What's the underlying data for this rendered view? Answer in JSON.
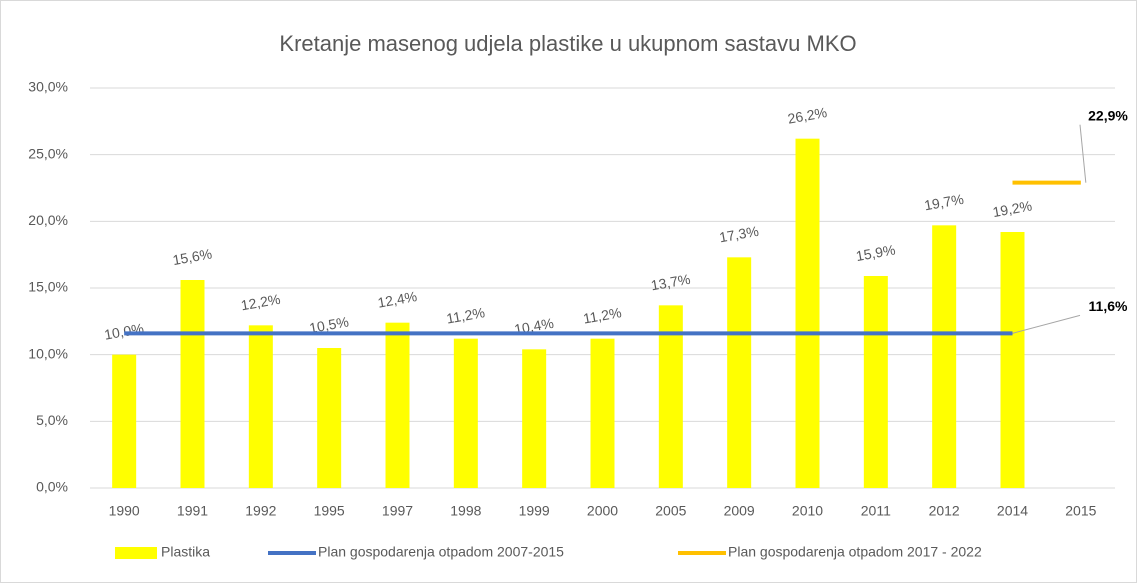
{
  "chart_data": {
    "type": "bar",
    "title": "Kretanje masenog udjela plastike u ukupnom sastavu MKO",
    "categories": [
      "1990",
      "1991",
      "1992",
      "1995",
      "1997",
      "1998",
      "1999",
      "2000",
      "2005",
      "2009",
      "2010",
      "2011",
      "2012",
      "2014",
      "2015"
    ],
    "series": [
      {
        "name": "Plastika",
        "type": "bar",
        "color": "#ffff00",
        "values": [
          10.0,
          15.6,
          12.2,
          10.5,
          12.4,
          11.2,
          10.4,
          11.2,
          13.7,
          17.3,
          26.2,
          15.9,
          19.7,
          19.2,
          null
        ],
        "value_labels": [
          "10,0%",
          "15,6%",
          "12,2%",
          "10,5%",
          "12,4%",
          "11,2%",
          "10,4%",
          "11,2%",
          "13,7%",
          "17,3%",
          "26,2%",
          "15,9%",
          "19,7%",
          "19,2%",
          null
        ]
      },
      {
        "name": "Plan gospodarenja otpadom 2007-2015",
        "type": "line",
        "color": "#4472c4",
        "values": [
          11.6,
          11.6,
          11.6,
          11.6,
          11.6,
          11.6,
          11.6,
          11.6,
          11.6,
          11.6,
          11.6,
          11.6,
          11.6,
          11.6,
          null
        ],
        "value_labels": [
          null,
          null,
          null,
          null,
          null,
          null,
          null,
          null,
          null,
          null,
          null,
          null,
          null,
          "11,6%",
          null
        ]
      },
      {
        "name": "Plan gospodarenja otpadom 2017 - 2022",
        "type": "line",
        "color": "#ffc000",
        "values": [
          null,
          null,
          null,
          null,
          null,
          null,
          null,
          null,
          null,
          null,
          null,
          null,
          null,
          22.9,
          22.9
        ],
        "value_labels": [
          null,
          null,
          null,
          null,
          null,
          null,
          null,
          null,
          null,
          null,
          null,
          null,
          null,
          null,
          "22,9%"
        ]
      }
    ],
    "ylim": [
      0,
      30
    ],
    "yticks": [
      {
        "value": 0,
        "label": "0,0%"
      },
      {
        "value": 5,
        "label": "5,0%"
      },
      {
        "value": 10,
        "label": "10,0%"
      },
      {
        "value": 15,
        "label": "15,0%"
      },
      {
        "value": 20,
        "label": "20,0%"
      },
      {
        "value": 25,
        "label": "25,0%"
      },
      {
        "value": 30,
        "label": "30,0%"
      }
    ],
    "grid": true,
    "legend": "bottom"
  }
}
